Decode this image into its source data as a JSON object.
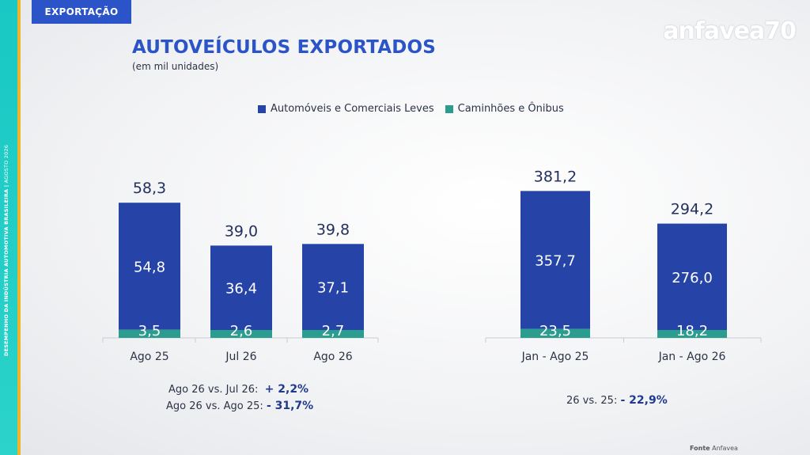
{
  "section_tag": "EXPORTAÇÃO",
  "logo": "anfavea70",
  "side_text": {
    "bold": "DESEMPENHO DA INDÚSTRIA AUTOMOTIVA BRASILEIRA |",
    "light": " AGOSTO 2026"
  },
  "title": "AUTOVEÍCULOS EXPORTADOS",
  "subtitle": "(em mil unidades)",
  "colors": {
    "accent": "#2b54c8",
    "series_light": "#2644a8",
    "series_heavy": "#2a9d8f",
    "strip": "#19c8c4"
  },
  "chart_data": [
    {
      "type": "bar",
      "stacked": true,
      "categories": [
        "Ago 25",
        "Jul 26",
        "Ago 26"
      ],
      "series": [
        {
          "name": "Automóveis e Comerciais Leves",
          "values": [
            "54,8",
            "36,4",
            "37,1"
          ]
        },
        {
          "name": "Caminhões e Ônibus",
          "values": [
            "3,5",
            "2,6",
            "2,7"
          ]
        }
      ],
      "totals": [
        "58,3",
        "39,0",
        "39,8"
      ],
      "legend": "top"
    },
    {
      "type": "bar",
      "stacked": true,
      "categories": [
        "Jan - Ago 25",
        "Jan - Ago 26"
      ],
      "series": [
        {
          "name": "Automóveis e Comerciais Leves",
          "values": [
            "357,7",
            "276,0"
          ]
        },
        {
          "name": "Caminhões e Ônibus",
          "values": [
            "23,5",
            "18,2"
          ]
        }
      ],
      "totals": [
        "381,2",
        "294,2"
      ],
      "legend": "top"
    }
  ],
  "notes": {
    "left1": {
      "label": "Ago 26 vs. Jul 26:",
      "value": "+ 2,2%"
    },
    "left2": {
      "label": "Ago 26 vs. Ago 25:",
      "value": "- 31,7%"
    },
    "right": {
      "label": "26 vs. 25:",
      "value": "- 22,9%"
    }
  },
  "source": {
    "label": "Fonte",
    "value": "Anfavea"
  }
}
